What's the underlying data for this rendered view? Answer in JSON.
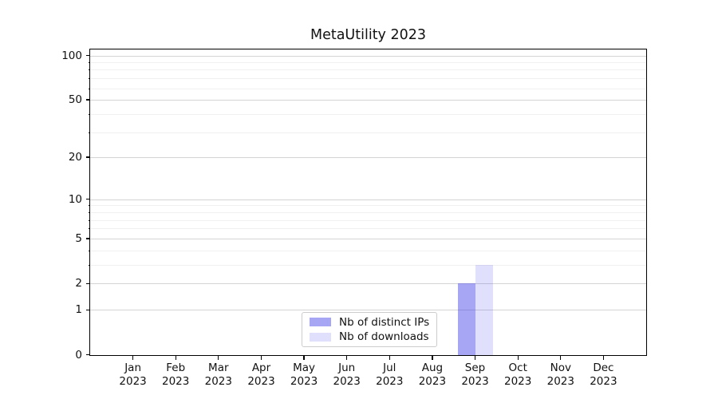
{
  "chart_data": {
    "type": "bar",
    "title": "MetaUtility 2023",
    "categories": [
      "Jan 2023",
      "Feb 2023",
      "Mar 2023",
      "Apr 2023",
      "May 2023",
      "Jun 2023",
      "Jul 2023",
      "Aug 2023",
      "Sep 2023",
      "Oct 2023",
      "Nov 2023",
      "Dec 2023"
    ],
    "series": [
      {
        "name": "Nb of distinct IPs",
        "color": "#4646eb",
        "alpha": 0.48,
        "apparent_color": "#a8a8f2",
        "values": [
          0,
          0,
          0,
          0,
          0,
          0,
          0,
          0,
          2,
          0,
          0,
          0
        ]
      },
      {
        "name": "Nb of downloads",
        "color": "#4646eb",
        "alpha": 0.17,
        "apparent_color": "#dadaf8",
        "values": [
          0,
          0,
          0,
          0,
          0,
          0,
          0,
          0,
          3,
          0,
          0,
          0
        ]
      }
    ],
    "xlabel": "",
    "ylabel": "",
    "y_axis": {
      "scale": "log1p",
      "major_ticks": [
        0,
        1,
        2,
        5,
        10,
        20,
        50,
        100
      ],
      "minor_ticks": [
        3,
        4,
        6,
        7,
        8,
        9,
        30,
        40,
        60,
        70,
        80,
        90
      ],
      "range": [
        0,
        110
      ]
    },
    "grid": "both",
    "legend_position": "lower center",
    "axis_color": "#000000",
    "grid_major_color": "#d4d4d4",
    "grid_minor_color": "#f0f0f0"
  }
}
